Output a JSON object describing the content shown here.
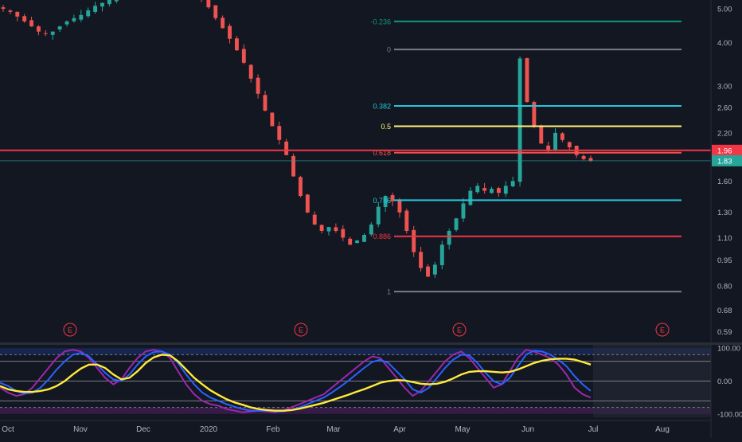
{
  "colors": {
    "background": "#131722",
    "up_candle": "#26a69a",
    "down_candle": "#ef5350",
    "axis_text": "#b2b5be",
    "horizontal_line": "#f23645",
    "last_price_line": "#26a69a",
    "osc_fast": "#9c27b0",
    "osc_slow": "#2962ff",
    "osc_signal": "#ffeb3b"
  },
  "chart_data": [
    {
      "type": "candlestick",
      "title": "",
      "price_axis": {
        "scale": "log",
        "range": [
          0.55,
          5.3
        ],
        "tick_labels": [
          "5.00",
          "4.00",
          "3.00",
          "2.60",
          "2.20",
          "1.96",
          "1.83",
          "1.60",
          "1.30",
          "1.10",
          "0.95",
          "0.80",
          "0.68",
          "0.59"
        ]
      },
      "time_axis": {
        "labels": [
          "Oct",
          "Nov",
          "Dec",
          "2020",
          "Feb",
          "Mar",
          "Apr",
          "May",
          "Jun",
          "Jul",
          "Aug"
        ]
      },
      "last_price": 1.83,
      "horizontal_line": {
        "value": 1.96,
        "label": "1.96"
      },
      "fibonacci": {
        "levels": [
          {
            "label": "-0.236",
            "value": 4.6,
            "color": "#089981"
          },
          {
            "label": "0",
            "value": 3.82,
            "color": "#787b86"
          },
          {
            "label": "0.382",
            "value": 2.63,
            "color": "#26c6da"
          },
          {
            "label": "0.5",
            "value": 2.3,
            "color": "#fff176"
          },
          {
            "label": "0.618",
            "value": 1.93,
            "color": "#ef5350"
          },
          {
            "label": "0.786",
            "value": 1.41,
            "color": "#26c6da"
          },
          {
            "label": "0.886",
            "value": 1.11,
            "color": "#f23645"
          },
          {
            "label": "1",
            "value": 0.77,
            "color": "#787b86"
          }
        ]
      },
      "earnings_markers": [
        "E",
        "E",
        "E",
        "E"
      ],
      "closes": [
        5.0,
        4.9,
        4.75,
        4.6,
        4.45,
        4.3,
        4.25,
        4.3,
        4.45,
        4.6,
        4.7,
        4.8,
        4.95,
        5.1,
        5.2,
        5.3,
        5.4,
        5.45,
        5.5,
        5.55,
        5.6,
        5.6,
        5.6,
        5.6,
        5.6,
        5.6,
        5.55,
        5.45,
        5.3,
        5.05,
        4.7,
        4.4,
        4.1,
        3.8,
        3.5,
        3.15,
        2.85,
        2.55,
        2.3,
        2.1,
        1.9,
        1.65,
        1.45,
        1.3,
        1.2,
        1.15,
        1.18,
        1.15,
        1.1,
        1.05,
        1.08,
        1.12,
        1.2,
        1.35,
        1.45,
        1.4,
        1.3,
        1.15,
        1.0,
        0.9,
        0.85,
        0.92,
        1.05,
        1.15,
        1.25,
        1.38,
        1.5,
        1.55,
        1.5,
        1.52,
        1.48,
        1.55,
        1.6,
        3.6,
        2.7,
        2.3,
        2.05,
        1.95,
        2.2,
        2.1,
        2.0,
        1.9,
        1.85,
        1.83
      ],
      "visible_range": [
        "Oct",
        "Jul"
      ]
    },
    {
      "type": "line",
      "title": "",
      "y_axis": {
        "range": [
          -110,
          110
        ],
        "tick_labels": [
          "100.00",
          "0.00",
          "-100.00"
        ]
      },
      "band_levels": [
        80,
        60,
        -60,
        -80
      ],
      "series": [
        {
          "role": "fast",
          "color": "#9c27b0",
          "values": [
            -20,
            -35,
            -45,
            -40,
            -20,
            10,
            40,
            70,
            90,
            95,
            90,
            70,
            40,
            10,
            -10,
            5,
            40,
            70,
            90,
            95,
            90,
            70,
            30,
            -10,
            -40,
            -60,
            -70,
            -75,
            -85,
            -90,
            -95,
            -92,
            -90,
            -92,
            -95,
            -90,
            -80,
            -70,
            -60,
            -50,
            -40,
            -20,
            0,
            20,
            40,
            60,
            75,
            70,
            40,
            10,
            -20,
            -45,
            -30,
            0,
            30,
            60,
            80,
            90,
            70,
            40,
            10,
            -20,
            -10,
            30,
            70,
            95,
            90,
            80,
            70,
            50,
            20,
            -20,
            -40,
            -50
          ]
        },
        {
          "role": "slow",
          "color": "#2962ff",
          "values": [
            -5,
            -15,
            -30,
            -38,
            -35,
            -20,
            5,
            35,
            60,
            80,
            85,
            75,
            50,
            25,
            5,
            0,
            20,
            50,
            75,
            88,
            90,
            80,
            55,
            20,
            -10,
            -35,
            -50,
            -60,
            -70,
            -78,
            -85,
            -90,
            -90,
            -90,
            -92,
            -92,
            -88,
            -80,
            -70,
            -60,
            -50,
            -35,
            -18,
            0,
            20,
            40,
            58,
            65,
            55,
            30,
            5,
            -25,
            -35,
            -20,
            10,
            40,
            65,
            80,
            78,
            55,
            25,
            0,
            -10,
            10,
            45,
            80,
            92,
            90,
            80,
            65,
            45,
            15,
            -10,
            -30
          ]
        },
        {
          "role": "signal",
          "color": "#ffeb3b",
          "values": [
            -15,
            -25,
            -30,
            -33,
            -33,
            -30,
            -25,
            -15,
            0,
            20,
            38,
            50,
            50,
            40,
            20,
            5,
            10,
            30,
            55,
            72,
            80,
            78,
            60,
            35,
            10,
            -10,
            -28,
            -42,
            -55,
            -65,
            -72,
            -80,
            -85,
            -88,
            -90,
            -90,
            -88,
            -84,
            -78,
            -72,
            -66,
            -58,
            -50,
            -42,
            -33,
            -25,
            -15,
            -5,
            0,
            3,
            2,
            -3,
            -8,
            -10,
            -8,
            -2,
            8,
            20,
            28,
            30,
            30,
            28,
            26,
            28,
            35,
            45,
            55,
            62,
            66,
            68,
            68,
            65,
            58,
            50
          ]
        }
      ]
    }
  ]
}
